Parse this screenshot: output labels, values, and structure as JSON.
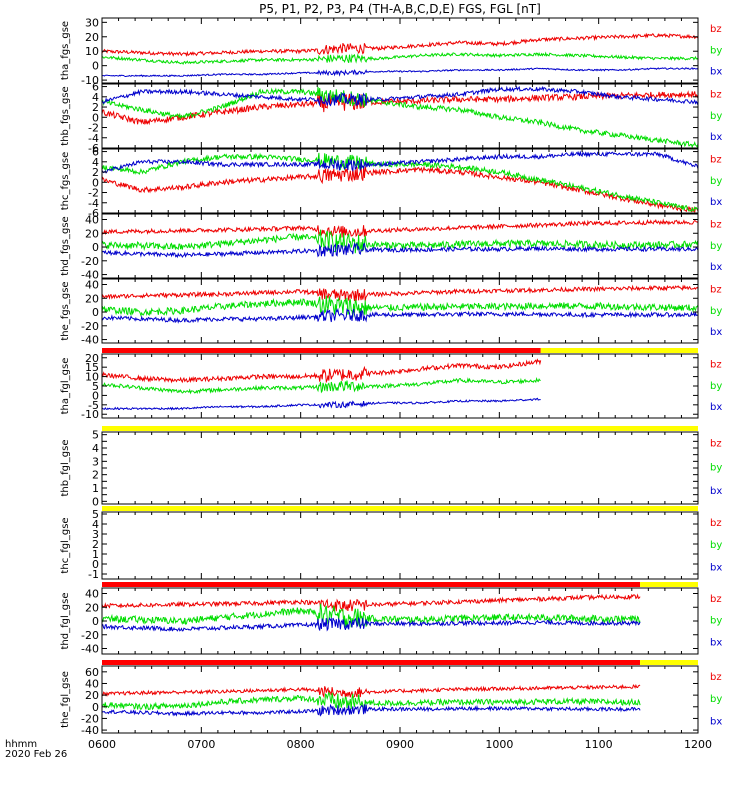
{
  "title": "P5, P1, P2, P3, P4 (TH-A,B,C,D,E) FGS, FGL [nT]",
  "footer": {
    "time_unit": "hhmm",
    "date": "2020 Feb 26"
  },
  "colors": {
    "bx": "#0000cc",
    "by": "#00dd00",
    "bz": "#ee0000",
    "mode_red": "#ff0000",
    "mode_yellow": "#ffff00",
    "axis": "#000000"
  },
  "chart_data": {
    "type": "line",
    "x_ticks": [
      "0600",
      "0700",
      "0800",
      "0900",
      "1000",
      "1100",
      "1200"
    ],
    "xlim": [
      "0600",
      "1200"
    ],
    "panels": [
      {
        "ylabel": "tha_fgs_gse",
        "ylim": [
          -12,
          33
        ],
        "yticks": [
          -10,
          0,
          10,
          20,
          30
        ],
        "series": [
          {
            "name": "bz",
            "values": [
              10,
              9,
              8,
              9,
              10,
              10,
              12,
              12,
              14,
              16,
              15,
              18,
              19,
              20,
              21,
              20
            ],
            "noise": 1.2
          },
          {
            "name": "by",
            "values": [
              6,
              4,
              2,
              3,
              4,
              4,
              5,
              5,
              7,
              8,
              7,
              8,
              7,
              6,
              5,
              5
            ],
            "noise": 1.0
          },
          {
            "name": "bx",
            "values": [
              -7,
              -7,
              -7,
              -6,
              -6,
              -5,
              -5,
              -4,
              -4,
              -3,
              -3,
              -2,
              -3,
              -3,
              -2,
              -2
            ],
            "noise": 0.5
          }
        ]
      },
      {
        "ylabel": "thb_fgs_gse",
        "ylim": [
          -6,
          6.5
        ],
        "yticks": [
          -6,
          -4,
          -2,
          0,
          2,
          4,
          6
        ],
        "series": [
          {
            "name": "bz",
            "values": [
              1,
              -1,
              0,
              1,
              2,
              2.5,
              3,
              3,
              3.2,
              3.5,
              3.5,
              3.8,
              4,
              4.2,
              4.4,
              4.5
            ],
            "noise": 0.6
          },
          {
            "name": "by",
            "values": [
              3,
              1.5,
              0,
              2,
              5,
              5,
              4,
              3,
              2,
              1.5,
              0,
              -1,
              -2.5,
              -3.5,
              -4.5,
              -5.5
            ],
            "noise": 0.5
          },
          {
            "name": "bx",
            "values": [
              3,
              5,
              5,
              4.5,
              4,
              3.5,
              3.5,
              3.5,
              4,
              4.5,
              5.5,
              5.5,
              5,
              4,
              3.5,
              3
            ],
            "noise": 0.4
          }
        ]
      },
      {
        "ylabel": "thc_fgs_gse",
        "ylim": [
          -6,
          6.5
        ],
        "yticks": [
          -6,
          -4,
          -2,
          0,
          2,
          4,
          6
        ],
        "series": [
          {
            "name": "bz",
            "values": [
              0.5,
              -1.5,
              -1,
              0,
              0.5,
              1,
              1.5,
              2,
              2.5,
              2,
              1,
              0,
              -1.5,
              -3,
              -4.5,
              -5.5
            ],
            "noise": 0.5
          },
          {
            "name": "by",
            "values": [
              3,
              2,
              4,
              5,
              5,
              4.5,
              4,
              3.5,
              3.5,
              3,
              2,
              0.5,
              -1,
              -2.5,
              -4,
              -5.5
            ],
            "noise": 0.5
          },
          {
            "name": "bx",
            "values": [
              2,
              4,
              4,
              3.5,
              3.5,
              3.5,
              3.5,
              3.5,
              4,
              4.5,
              5,
              5,
              5.5,
              5.5,
              5.5,
              3
            ],
            "noise": 0.4
          }
        ]
      },
      {
        "ylabel": "thd_fgs_gse",
        "ylim": [
          -45,
          48
        ],
        "yticks": [
          -40,
          -20,
          0,
          20,
          40
        ],
        "series": [
          {
            "name": "bz",
            "values": [
              22,
              23,
              24,
              25,
              26,
              28,
              22,
              24,
              26,
              28,
              30,
              32,
              34,
              35,
              36,
              36
            ],
            "noise": 3
          },
          {
            "name": "by",
            "values": [
              3,
              2,
              0,
              5,
              10,
              15,
              6,
              3,
              2,
              4,
              5,
              5,
              4,
              3,
              3,
              4
            ],
            "noise": 5
          },
          {
            "name": "bx",
            "values": [
              -8,
              -10,
              -12,
              -10,
              -8,
              -6,
              -4,
              -4,
              -4,
              -3,
              -3,
              -2,
              -3,
              -3,
              -3,
              -3
            ],
            "noise": 3
          }
        ]
      },
      {
        "ylabel": "the_fgs_gse",
        "ylim": [
          -45,
          48
        ],
        "yticks": [
          -40,
          -20,
          0,
          20,
          40
        ],
        "series": [
          {
            "name": "bz",
            "values": [
              22,
              24,
              25,
              26,
              28,
              30,
              24,
              26,
              28,
              30,
              31,
              32,
              33,
              34,
              35,
              35
            ],
            "noise": 3
          },
          {
            "name": "by",
            "values": [
              4,
              0,
              2,
              8,
              12,
              15,
              8,
              6,
              7,
              8,
              8,
              9,
              9,
              8,
              7,
              6
            ],
            "noise": 5
          },
          {
            "name": "bx",
            "values": [
              -8,
              -10,
              -12,
              -10,
              -10,
              -8,
              -5,
              -4,
              -4,
              -3,
              -3,
              -3,
              -4,
              -4,
              -4,
              -4
            ],
            "noise": 3
          }
        ]
      },
      {
        "ylabel": "tha_fgl_gse",
        "ylim": [
          -12,
          22
        ],
        "yticks": [
          -10,
          -5,
          0,
          5,
          10,
          15,
          20
        ],
        "x_end": "1025",
        "mode_bar": [
          {
            "color": "red",
            "from": "0600",
            "to": "1025"
          },
          {
            "color": "yellow",
            "from": "1025",
            "to": "1200"
          }
        ],
        "series": [
          {
            "name": "bz",
            "values": [
              11,
              9,
              8,
              9,
              10,
              10,
              11,
              12,
              14,
              16,
              15,
              18,
              19,
              18,
              17,
              17
            ],
            "noise": 1.2
          },
          {
            "name": "by",
            "values": [
              6,
              4,
              2,
              3,
              4,
              4,
              5,
              5,
              6,
              8,
              7,
              8,
              7,
              6,
              5,
              5
            ],
            "noise": 1.0
          },
          {
            "name": "bx",
            "values": [
              -7,
              -7,
              -7,
              -6,
              -6,
              -5,
              -5,
              -4,
              -4,
              -3,
              -3,
              -2,
              -3,
              -3,
              -2,
              -1
            ],
            "noise": 0.5
          }
        ]
      },
      {
        "ylabel": "thb_fgl_gse",
        "ylim": [
          -0.2,
          5.2
        ],
        "yticks": [
          0,
          0.5,
          1,
          1.5,
          2,
          2.5,
          3,
          3.5,
          4,
          4.5,
          5
        ],
        "yticklabels": [
          "0",
          "",
          "1",
          "",
          "2",
          "",
          "3",
          "",
          "4",
          "",
          "5"
        ],
        "x_end": null,
        "mode_bar": [
          {
            "color": "yellow",
            "from": "0600",
            "to": "1200"
          }
        ],
        "series": []
      },
      {
        "ylabel": "thc_fgl_gse",
        "ylim": [
          -1.5,
          5.2
        ],
        "yticks": [
          -1,
          0,
          1,
          2,
          3,
          4,
          5
        ],
        "x_end": null,
        "mode_bar": [
          {
            "color": "yellow",
            "from": "0600",
            "to": "1200"
          }
        ],
        "series": []
      },
      {
        "ylabel": "thd_fgl_gse",
        "ylim": [
          -48,
          48
        ],
        "yticks": [
          -40,
          -20,
          0,
          20,
          40
        ],
        "x_end": "1125",
        "mode_bar": [
          {
            "color": "red",
            "from": "0600",
            "to": "1125"
          },
          {
            "color": "yellow",
            "from": "1125",
            "to": "1200"
          }
        ],
        "series": [
          {
            "name": "bz",
            "values": [
              22,
              23,
              24,
              25,
              26,
              28,
              22,
              24,
              26,
              28,
              30,
              32,
              34,
              35,
              36,
              36
            ],
            "noise": 3
          },
          {
            "name": "by",
            "values": [
              3,
              2,
              0,
              5,
              10,
              15,
              6,
              3,
              2,
              4,
              5,
              5,
              4,
              3,
              3,
              4
            ],
            "noise": 5
          },
          {
            "name": "bx",
            "values": [
              -8,
              -10,
              -12,
              -10,
              -8,
              -6,
              -4,
              -4,
              -4,
              -3,
              -3,
              -2,
              -3,
              -3,
              -3,
              -3
            ],
            "noise": 3
          }
        ]
      },
      {
        "ylabel": "the_fgl_gse",
        "ylim": [
          -45,
          70
        ],
        "yticks": [
          -40,
          -20,
          0,
          20,
          40,
          60
        ],
        "x_end": "1125",
        "mode_bar": [
          {
            "color": "red",
            "from": "0600",
            "to": "1125"
          },
          {
            "color": "yellow",
            "from": "1125",
            "to": "1200"
          }
        ],
        "series": [
          {
            "name": "bz",
            "values": [
              22,
              24,
              25,
              26,
              28,
              30,
              24,
              26,
              28,
              30,
              31,
              32,
              33,
              34,
              35,
              35
            ],
            "noise": 3
          },
          {
            "name": "by",
            "values": [
              4,
              0,
              2,
              8,
              12,
              15,
              8,
              6,
              7,
              8,
              8,
              9,
              9,
              8,
              7,
              6
            ],
            "noise": 5
          },
          {
            "name": "bx",
            "values": [
              -8,
              -10,
              -12,
              -10,
              -10,
              -8,
              -5,
              -4,
              -4,
              -3,
              -3,
              -3,
              -4,
              -4,
              -4,
              -4
            ],
            "noise": 3
          }
        ]
      }
    ],
    "legend": [
      "bz",
      "by",
      "bx"
    ]
  }
}
